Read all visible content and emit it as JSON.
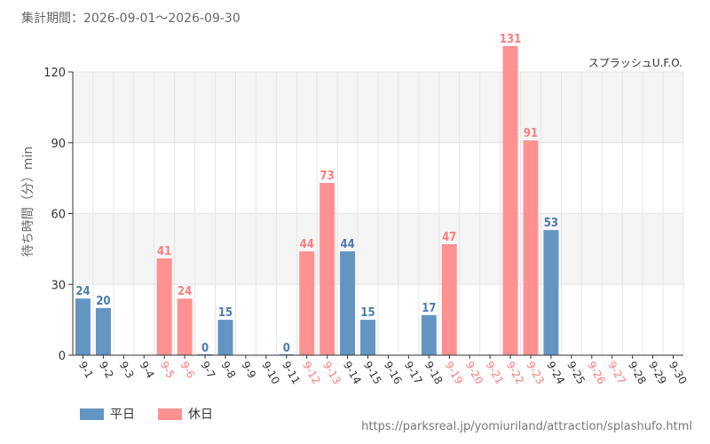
{
  "header": {
    "period_label": "集計期間：2026-09-01～2026-09-30"
  },
  "legend": {
    "weekday": "平日",
    "holiday": "休日"
  },
  "source_url": "https://parksreal.jp/yomiuriland/attraction/splashufo.html",
  "colors": {
    "weekday": "#6395c3",
    "holiday": "#ff9191",
    "weekday_label": "#4a7cb0",
    "holiday_label": "#ff7a7a",
    "band": "#f5f5f5",
    "grid": "#e6e6e6"
  },
  "chart_data": {
    "type": "bar",
    "attraction": "スプラッシュU.F.O.",
    "ylabel": "待ち時間（分）min",
    "ylim": [
      0,
      120
    ],
    "yticks": [
      0,
      30,
      60,
      90,
      120
    ],
    "grid": true,
    "categories": [
      "9-1",
      "9-2",
      "9-3",
      "9-4",
      "9-5",
      "9-6",
      "9-7",
      "9-8",
      "9-9",
      "9-10",
      "9-11",
      "9-12",
      "9-13",
      "9-14",
      "9-15",
      "9-16",
      "9-17",
      "9-18",
      "9-19",
      "9-20",
      "9-21",
      "9-22",
      "9-23",
      "9-24",
      "9-25",
      "9-26",
      "9-27",
      "9-28",
      "9-29",
      "9-30"
    ],
    "day_type": [
      "weekday",
      "weekday",
      "weekday",
      "weekday",
      "holiday",
      "holiday",
      "weekday",
      "weekday",
      "weekday",
      "weekday",
      "weekday",
      "holiday",
      "holiday",
      "weekday",
      "weekday",
      "weekday",
      "weekday",
      "weekday",
      "holiday",
      "holiday",
      "holiday",
      "holiday",
      "holiday",
      "weekday",
      "weekday",
      "holiday",
      "holiday",
      "weekday",
      "weekday",
      "weekday"
    ],
    "values": [
      24,
      20,
      null,
      null,
      41,
      24,
      0,
      15,
      null,
      null,
      0,
      44,
      73,
      44,
      15,
      null,
      null,
      17,
      47,
      null,
      null,
      131,
      91,
      53,
      null,
      null,
      null,
      null,
      null,
      null
    ]
  }
}
